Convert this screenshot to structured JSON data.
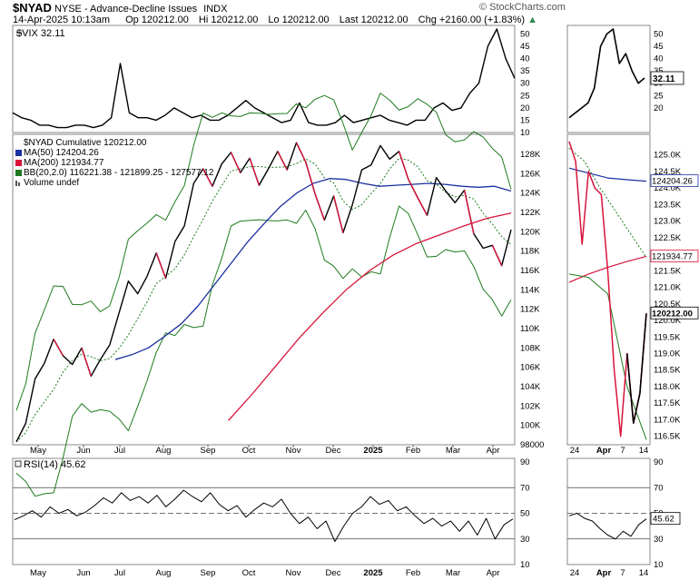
{
  "header": {
    "symbol": "$NYAD",
    "exchange_desc": "NYSE - Advance-Decline Issues",
    "exchange_type": "INDX",
    "datetime": "14-Apr-2025 10:13am",
    "open": "Op 120212.00",
    "high": "Hi 120212.00",
    "low": "Lo 120212.00",
    "last": "Last 120212.00",
    "change": "Chg +2160.00 (+1.83%)",
    "source": "© StockCharts.com"
  },
  "colors": {
    "price": "#000000",
    "ma50": "#1a2fa0",
    "ma200": "#d8133a",
    "bb": "#1e7a1e",
    "rsi": "#000000",
    "up": "#2e8b57"
  },
  "vix": {
    "label": "$VIX 32.11",
    "last_badge": "32.11",
    "ticks": [
      "50",
      "45",
      "40",
      "35",
      "30",
      "25",
      "20",
      "15",
      "10"
    ],
    "zoom_ticks": [
      "50",
      "45",
      "40",
      "35",
      "30",
      "25",
      "20"
    ]
  },
  "main": {
    "legend": [
      {
        "text": "$NYAD Cumulative 120212.00",
        "color": "#000000",
        "marker": "none"
      },
      {
        "text": "MA(50) 124204.26",
        "color": "#1a2fa0",
        "marker": "line"
      },
      {
        "text": "MA(200) 121934.77",
        "color": "#d8133a",
        "marker": "line"
      },
      {
        "text": "BB(20,2.0) 116221.38 - 121899.25 - 127577.12",
        "color": "#1e7a1e",
        "marker": "line"
      },
      {
        "text": "Volume undef",
        "color": "#555555",
        "marker": "bars"
      }
    ],
    "ticks": [
      "128K",
      "126K",
      "124K",
      "122K",
      "120K",
      "118K",
      "116K",
      "114K",
      "112K",
      "110K",
      "108K",
      "106K",
      "104K",
      "102K",
      "100K",
      "98000"
    ],
    "zoom_ticks": [
      "125.0K",
      "124.5K",
      "124.0K",
      "123.5K",
      "123.0K",
      "122.5K",
      "122.0K",
      "121.5K",
      "121.0K",
      "120.5K",
      "120.0K",
      "119.5K",
      "119.0K",
      "118.5K",
      "118.0K",
      "117.5K",
      "117.0K",
      "116.5K"
    ],
    "badge_ma50": "124204.26",
    "badge_ma200": "121934.77",
    "badge_last": "120212.00"
  },
  "rsi": {
    "label": "RSI(14) 45.62",
    "last_badge": "45.62",
    "ticks": [
      "90",
      "70",
      "50",
      "30",
      "10"
    ]
  },
  "x_axis": {
    "labels": [
      "May",
      "Jun",
      "Jul",
      "Aug",
      "Sep",
      "Oct",
      "Nov",
      "Dec",
      "2025",
      "Feb",
      "Mar",
      "Apr"
    ],
    "zoom_labels": [
      "24",
      "Apr",
      "7",
      "14"
    ]
  },
  "chart_data": [
    {
      "type": "line",
      "title": "$VIX 32.11",
      "months": [
        "May",
        "Jun",
        "Jul",
        "Aug",
        "Sep",
        "Oct",
        "Nov",
        "Dec",
        "2025",
        "Feb",
        "Mar",
        "Apr"
      ],
      "series": [
        {
          "name": "$VIX",
          "values": [
            18,
            16,
            15,
            13,
            13,
            12,
            12,
            13,
            13,
            12,
            13,
            16,
            38,
            18,
            16,
            16,
            15,
            17,
            20,
            18,
            16,
            17,
            15,
            15,
            17,
            20,
            23,
            20,
            18,
            16,
            14,
            15,
            22,
            14,
            13,
            13,
            14,
            17,
            14,
            15,
            16,
            17,
            15,
            14,
            13,
            15,
            15,
            20,
            22,
            19,
            20,
            26,
            30,
            45,
            52,
            40,
            32
          ]
        }
      ],
      "ylim": [
        10,
        52
      ]
    },
    {
      "type": "line",
      "title": "$NYAD Cumulative 120212.00",
      "series": [
        {
          "name": "$NYAD Cumulative",
          "values": [
            98300,
            100200,
            104800,
            106400,
            108900,
            107200,
            106300,
            108000,
            105100,
            106800,
            108300,
            111600,
            114900,
            113600,
            115400,
            117800,
            115200,
            119000,
            120600,
            125000,
            126500,
            124700,
            127000,
            128200,
            126100,
            127600,
            124800,
            126500,
            128300,
            126400,
            129200,
            127200,
            123900,
            121200,
            123700,
            119900,
            122800,
            126400,
            126900,
            128900,
            127500,
            128300,
            125400,
            123500,
            121700,
            125600,
            124200,
            123000,
            124300,
            119800,
            118300,
            118600,
            116500,
            120212
          ]
        },
        {
          "name": "MA(50)",
          "values": [
            null,
            null,
            null,
            null,
            null,
            null,
            106800,
            107300,
            108000,
            109200,
            110500,
            112300,
            114500,
            116700,
            118900,
            120800,
            122600,
            124000,
            125000,
            125500,
            125400,
            125000,
            124700,
            124800,
            124900,
            125000,
            124900,
            124700,
            124600,
            124700,
            124204.26
          ]
        },
        {
          "name": "MA(200)",
          "values": [
            null,
            null,
            null,
            null,
            null,
            null,
            null,
            null,
            null,
            100500,
            103200,
            106100,
            109000,
            111600,
            114000,
            116000,
            117600,
            118800,
            119700,
            120600,
            121400,
            121934.77
          ]
        },
        {
          "name": "BB(20,2.0)",
          "values": [
            116221.38,
            121899.25,
            127577.12
          ]
        }
      ],
      "ylim": [
        98000,
        129500
      ]
    },
    {
      "type": "line",
      "title": "RSI(14) 45.62",
      "series": [
        {
          "name": "RSI(14)",
          "values": [
            45,
            48,
            52,
            47,
            55,
            50,
            53,
            48,
            51,
            56,
            62,
            58,
            66,
            60,
            63,
            58,
            64,
            55,
            61,
            68,
            63,
            59,
            66,
            57,
            52,
            56,
            47,
            53,
            58,
            55,
            61,
            50,
            42,
            47,
            38,
            44,
            28,
            40,
            50,
            55,
            63,
            57,
            60,
            52,
            55,
            48,
            42,
            46,
            40,
            44,
            36,
            44,
            33,
            46,
            30,
            41,
            45.62
          ]
        }
      ],
      "ylim": [
        10,
        90
      ]
    }
  ]
}
